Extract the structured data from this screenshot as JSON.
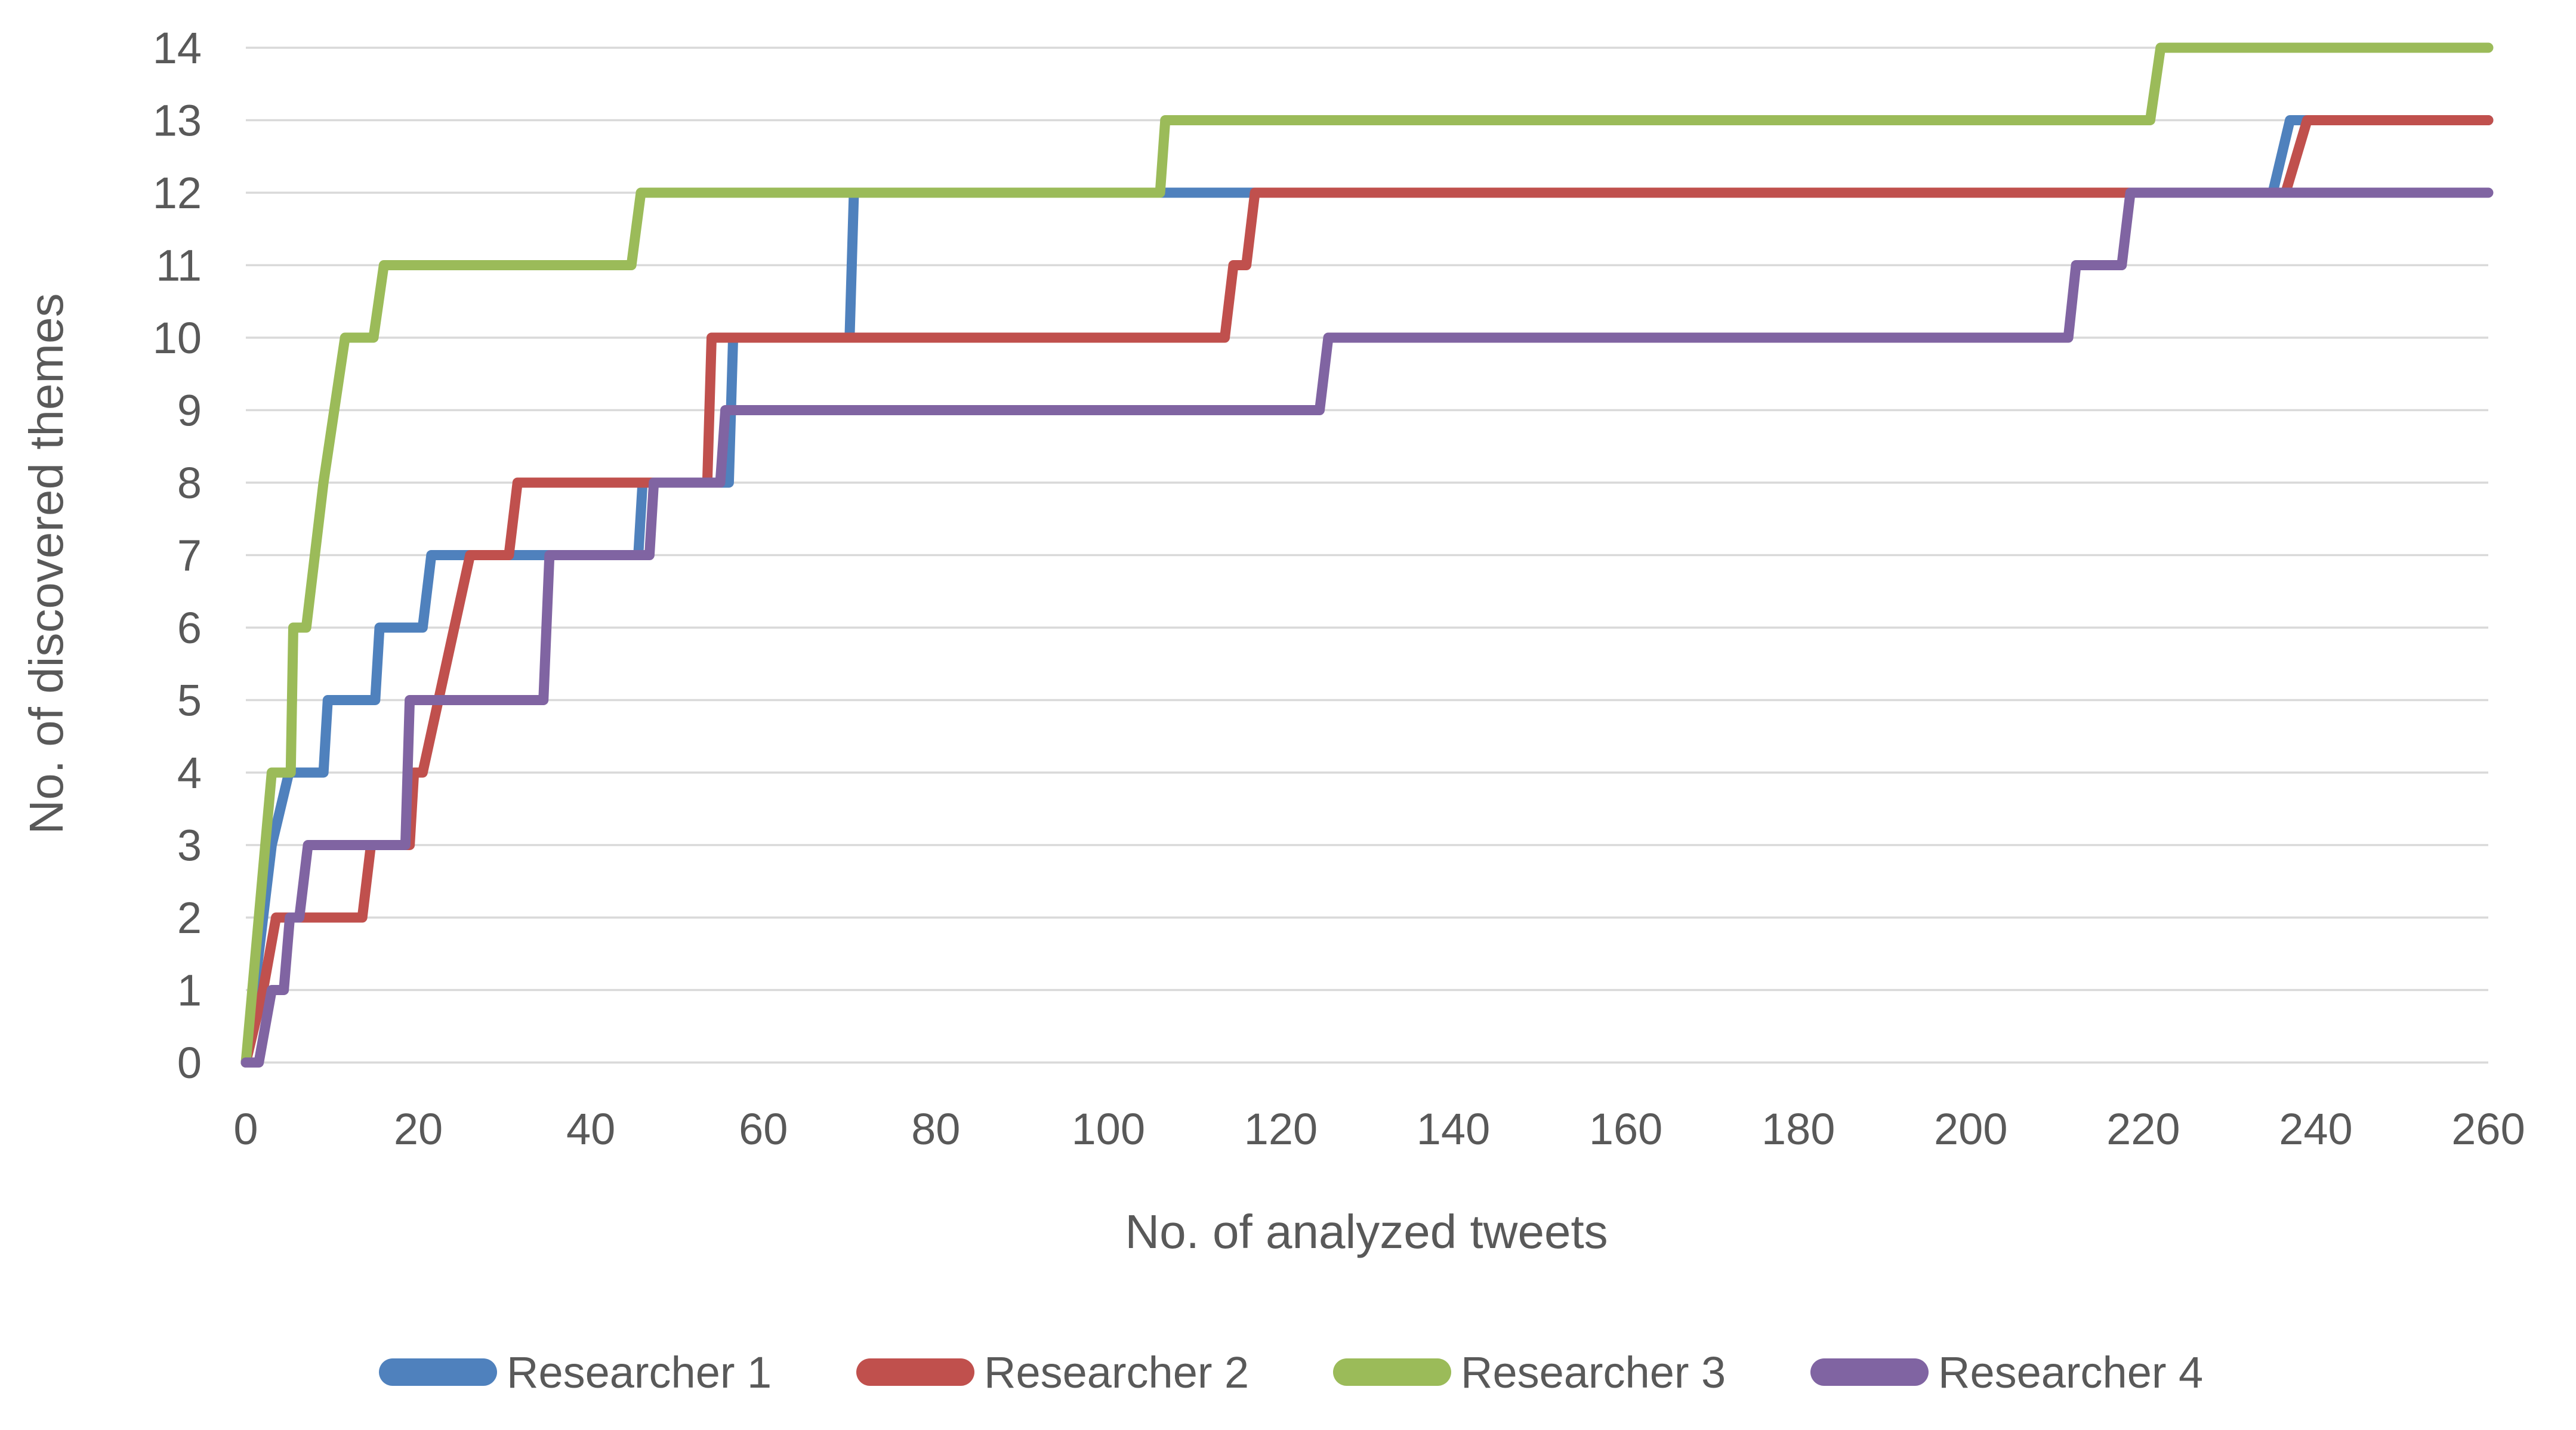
{
  "chart_data": {
    "type": "line",
    "subtype": "step",
    "xlabel": "No. of analyzed tweets",
    "ylabel": "No. of discovered themes",
    "xlim": [
      0,
      260
    ],
    "ylim": [
      0,
      14
    ],
    "x_ticks": [
      0,
      20,
      40,
      60,
      80,
      100,
      120,
      140,
      160,
      180,
      200,
      220,
      240,
      260
    ],
    "y_ticks": [
      0,
      1,
      2,
      3,
      4,
      5,
      6,
      7,
      8,
      9,
      10,
      11,
      12,
      13,
      14
    ],
    "grid": "horizontal",
    "grid_color": "#D9D9D9",
    "text_color": "#595959",
    "background_color": "#FFFFFF",
    "legend_position": "bottom",
    "series": [
      {
        "name": "Researcher 1",
        "color": "#4F81BD",
        "final_value": 13,
        "points": [
          [
            0,
            0
          ],
          [
            1,
            1
          ],
          [
            2,
            2
          ],
          [
            3,
            3
          ],
          [
            5,
            4
          ],
          [
            9,
            4
          ],
          [
            9.5,
            5
          ],
          [
            15,
            5
          ],
          [
            15.5,
            6
          ],
          [
            20.5,
            6
          ],
          [
            21.5,
            7
          ],
          [
            45.5,
            7
          ],
          [
            46,
            8
          ],
          [
            56,
            8
          ],
          [
            56.5,
            10
          ],
          [
            70,
            10
          ],
          [
            70.5,
            12
          ],
          [
            235,
            12
          ],
          [
            237,
            13
          ],
          [
            260,
            13
          ]
        ]
      },
      {
        "name": "Researcher 2",
        "color": "#C0504D",
        "final_value": 13,
        "points": [
          [
            0,
            0
          ],
          [
            2,
            1
          ],
          [
            3.5,
            2
          ],
          [
            13.5,
            2
          ],
          [
            14.5,
            3
          ],
          [
            19,
            3
          ],
          [
            19.5,
            4
          ],
          [
            20.5,
            4
          ],
          [
            26,
            7
          ],
          [
            30.5,
            7
          ],
          [
            31.5,
            8
          ],
          [
            53.5,
            8
          ],
          [
            54,
            10
          ],
          [
            113.5,
            10
          ],
          [
            114.5,
            11
          ],
          [
            116,
            11
          ],
          [
            117,
            12
          ],
          [
            236.5,
            12
          ],
          [
            239,
            13
          ],
          [
            260,
            13
          ]
        ]
      },
      {
        "name": "Researcher 3",
        "color": "#9BBB59",
        "final_value": 14,
        "points": [
          [
            0,
            0
          ],
          [
            3,
            4
          ],
          [
            5.2,
            4
          ],
          [
            5.5,
            6
          ],
          [
            7,
            6
          ],
          [
            9,
            8
          ],
          [
            11.5,
            10
          ],
          [
            14.8,
            10
          ],
          [
            16,
            11
          ],
          [
            44.7,
            11
          ],
          [
            45.8,
            12
          ],
          [
            106,
            12
          ],
          [
            106.6,
            13
          ],
          [
            220.8,
            13
          ],
          [
            222,
            14
          ],
          [
            260,
            14
          ]
        ]
      },
      {
        "name": "Researcher 4",
        "color": "#8064A2",
        "final_value": 12,
        "points": [
          [
            0,
            0
          ],
          [
            1.5,
            0
          ],
          [
            3,
            1
          ],
          [
            4.4,
            1
          ],
          [
            5.1,
            2
          ],
          [
            6.2,
            2
          ],
          [
            7.2,
            3
          ],
          [
            18.5,
            3
          ],
          [
            19,
            5
          ],
          [
            34.5,
            5
          ],
          [
            35.2,
            7
          ],
          [
            46.8,
            7
          ],
          [
            47.3,
            8
          ],
          [
            55,
            8
          ],
          [
            55.6,
            9
          ],
          [
            124.5,
            9
          ],
          [
            125.5,
            10
          ],
          [
            211.3,
            10
          ],
          [
            212.2,
            11
          ],
          [
            217.5,
            11
          ],
          [
            218.5,
            12
          ],
          [
            260,
            12
          ]
        ]
      }
    ]
  }
}
